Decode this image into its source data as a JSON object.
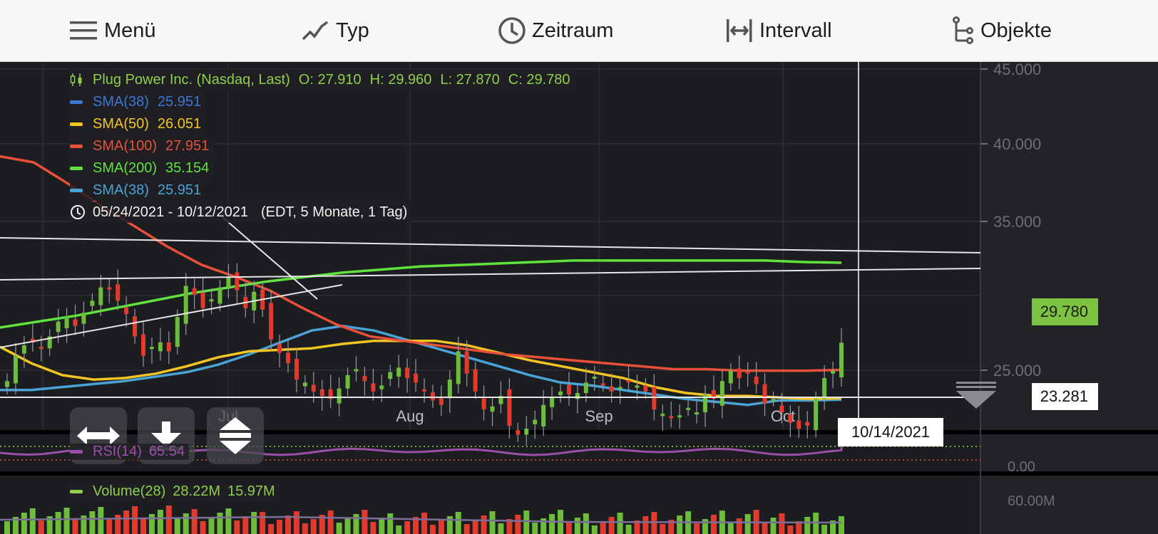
{
  "toolbar": {
    "menu": "Menü",
    "type": "Typ",
    "period": "Zeitraum",
    "interval": "Intervall",
    "objects": "Objekte"
  },
  "legend": {
    "main_label": "Plug Power Inc. (Nasdaq, Last)",
    "ohlc": {
      "o": "O: 27.910",
      "h": "H: 29.960",
      "l": "L: 27.870",
      "c": "C: 29.780"
    },
    "indicators": [
      {
        "label": "SMA(38)",
        "value": "25.951",
        "color": "#3b78d8"
      },
      {
        "label": "SMA(50)",
        "value": "26.051",
        "color": "#f3c522"
      },
      {
        "label": "SMA(100)",
        "value": "27.951",
        "color": "#e8503a"
      },
      {
        "label": "SMA(200)",
        "value": "35.154",
        "color": "#5fe33c"
      },
      {
        "label": "SMA(38)",
        "value": "25.951",
        "color": "#4aa3d6"
      }
    ],
    "range": "05/24/2021 - 10/12/2021",
    "range_detail": "(EDT, 5 Monate, 1 Tag)"
  },
  "price_tags": {
    "last": "29.780",
    "low": "23.281"
  },
  "crosshair_date": "10/14/2021",
  "rsi": {
    "label": "RSI(14)",
    "value": "65.54",
    "axis": "0.00"
  },
  "volume": {
    "label": "Volume(28)",
    "value1": "28.22M",
    "value2": "15.97M",
    "axis": "60.00M"
  },
  "colors": {
    "up": "#6dbd3b",
    "down": "#e23b2e",
    "price_tag": "#7ec242",
    "rsi": "#9c4fa8",
    "legend_main": "#8fcf4a"
  },
  "chart_data": {
    "type": "candlestick",
    "title": "Plug Power Inc. (Nasdaq, Last)",
    "x_labels": [
      "Jul",
      "Aug",
      "Sep",
      "Oct"
    ],
    "y_ticks": [
      "45.000",
      "40.000",
      "35.000",
      "25.000"
    ],
    "ylim": [
      23.0,
      45.0
    ],
    "last_close": 29.78,
    "closes": [
      27.2,
      28.9,
      29.6,
      29.8,
      29.4,
      30.2,
      31.2,
      31.5,
      30.9,
      31.8,
      32.6,
      33.5,
      33.4,
      32.6,
      31.7,
      30.2,
      28.9,
      29.5,
      29.8,
      29.2,
      31.5,
      33.6,
      33.0,
      32.1,
      32.7,
      33.5,
      34.2,
      33.3,
      32.1,
      33.2,
      32.0,
      30.0,
      29.1,
      28.4,
      27.3,
      27.1,
      26.5,
      26.2,
      26.0,
      26.7,
      27.6,
      28.0,
      27.2,
      26.5,
      26.9,
      27.8,
      28.1,
      27.4,
      27.1,
      26.6,
      25.9,
      25.6,
      27.3,
      29.2,
      27.7,
      26.5,
      25.3,
      25.5,
      26.2,
      24.2,
      23.6,
      24.0,
      24.6,
      25.6,
      26.1,
      26.5,
      26.3,
      26.4,
      27.1,
      27.5,
      27.0,
      26.5,
      26.8,
      27.1,
      26.9,
      26.5,
      25.3,
      25.0,
      24.7,
      24.9,
      25.4,
      25.1,
      26.3,
      26.0,
      27.2,
      27.9,
      27.4,
      27.8,
      27.0,
      25.7,
      26.0,
      25.1,
      24.4,
      24.0,
      24.2,
      26.0,
      27.4,
      27.9,
      29.78
    ],
    "series": [
      {
        "name": "SMA(38)",
        "color": "#4aa3d6",
        "values": [
          26.6,
          26.6,
          26.8,
          27.0,
          27.2,
          27.5,
          27.8,
          28.3,
          29.0,
          29.8,
          30.6,
          30.9,
          30.6,
          30.0,
          29.4,
          28.8,
          28.2,
          27.6,
          27.1,
          26.9,
          26.6,
          26.3,
          26.0,
          25.8,
          25.6,
          25.9,
          25.9,
          25.951
        ]
      },
      {
        "name": "SMA(50)",
        "color": "#f3c522",
        "values": [
          29.5,
          28.4,
          27.6,
          27.3,
          27.4,
          27.7,
          28.2,
          28.8,
          29.2,
          29.3,
          29.4,
          29.7,
          29.9,
          29.9,
          29.9,
          29.6,
          29.1,
          28.6,
          28.2,
          27.8,
          27.4,
          26.8,
          26.4,
          26.2,
          26.2,
          26.1,
          26.0,
          26.051
        ]
      },
      {
        "name": "SMA(100)",
        "color": "#e8503a",
        "values": [
          42.3,
          41.9,
          40.5,
          39.0,
          37.6,
          36.2,
          35.0,
          34.2,
          33.3,
          32.1,
          31.0,
          30.2,
          29.9,
          29.6,
          29.3,
          29.0,
          28.8,
          28.6,
          28.4,
          28.2,
          28.0,
          28.0,
          27.9,
          27.9,
          27.9,
          27.951
        ]
      },
      {
        "name": "SMA(200)",
        "color": "#5fe33c",
        "values": [
          30.8,
          31.2,
          31.6,
          32.1,
          32.6,
          33.1,
          33.5,
          33.9,
          34.2,
          34.5,
          34.7,
          34.9,
          35.0,
          35.1,
          35.2,
          35.3,
          35.3,
          35.3,
          35.3,
          35.3,
          35.3,
          35.2,
          35.154
        ]
      }
    ]
  }
}
